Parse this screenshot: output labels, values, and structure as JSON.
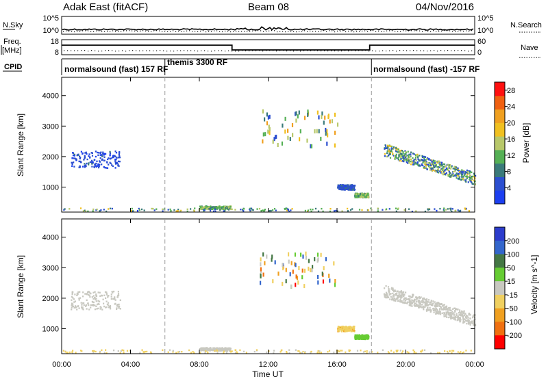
{
  "header": {
    "title": "Adak East (fitACF)",
    "beam": "Beam 08",
    "date": "04/Nov/2016"
  },
  "panels": {
    "nsky": {
      "label": "N.Sky",
      "ticks": [
        "10^5",
        "10^0"
      ],
      "right_label": "N.Search",
      "right_ticks": [
        "10^5",
        "10^0"
      ]
    },
    "freq": {
      "label_line1": "Freq.",
      "label_line2": "[MHz]",
      "ticks": [
        "18",
        "8"
      ],
      "right_label": "Nave",
      "right_ticks": [
        "60",
        "0"
      ]
    },
    "cpid": {
      "label": "CPID",
      "segments": [
        {
          "text": "normalsound (fast) 157 RF",
          "start_hour": 0
        },
        {
          "text": "themis 3300 RF",
          "start_hour": 6
        },
        {
          "text": "normalsound (fast) -157 RF",
          "start_hour": 18
        }
      ]
    }
  },
  "colors": {
    "power": [
      "#1c3ff0",
      "#2c4fd0",
      "#3a7a7a",
      "#55b055",
      "#b8c86a",
      "#f0c020",
      "#f0a020",
      "#f06010",
      "#ff1010"
    ],
    "velocity": [
      "#2c3ccc",
      "#3366cc",
      "#447744",
      "#66cc33",
      "#c8c8c0",
      "#f0d060",
      "#f0a020",
      "#f07010",
      "#ff0000"
    ]
  },
  "chart_data": [
    {
      "type": "heatmap",
      "panel": "power",
      "ylabel": "Slant Range [km]",
      "yticks": [
        1000,
        2000,
        3000,
        4000
      ],
      "ylim": [
        180,
        4600
      ],
      "xlim_hours": [
        0,
        24
      ],
      "colorbar": {
        "label": "Power [dB]",
        "ticks": [
          "4",
          "8",
          "12",
          "16",
          "20",
          "24",
          "28"
        ],
        "range": [
          0,
          30
        ]
      },
      "clusters": [
        {
          "t0": 0.5,
          "t1": 3.4,
          "r0": 1650,
          "r1": 2200,
          "v0": 2,
          "v1": 7
        },
        {
          "t0": 8.0,
          "t1": 9.8,
          "r0": 300,
          "r1": 400,
          "v0": 8,
          "v1": 16
        },
        {
          "t0": 16.0,
          "t1": 17.0,
          "r0": 930,
          "r1": 1100,
          "v0": 3,
          "v1": 8
        },
        {
          "t0": 17.0,
          "t1": 17.8,
          "r0": 680,
          "r1": 820,
          "v0": 8,
          "v1": 16
        },
        {
          "t0": 18.7,
          "t1": 24.0,
          "r0": 1250,
          "r1": 2450,
          "v0": 3,
          "v1": 18
        },
        {
          "t0": 11.5,
          "t1": 16.0,
          "r0": 2400,
          "r1": 3550,
          "v0": 4,
          "v1": 22
        },
        {
          "t0": 0.0,
          "t1": 24.0,
          "r0": 200,
          "r1": 330,
          "v0": 3,
          "v1": 18
        }
      ]
    },
    {
      "type": "heatmap",
      "panel": "velocity",
      "ylabel": "Slant Range [km]",
      "xlabel": "Time UT",
      "yticks": [
        1000,
        2000,
        3000,
        4000
      ],
      "ylim": [
        180,
        4600
      ],
      "xticks": [
        "00:00",
        "04:00",
        "08:00",
        "12:00",
        "16:00",
        "20:00",
        "00:00"
      ],
      "xlim_hours": [
        0,
        24
      ],
      "colorbar": {
        "label": "Velocity [m s^-1]",
        "ticks": [
          "200",
          "100",
          "50",
          "15",
          "-15",
          "-50",
          "-100",
          "-200"
        ],
        "range": [
          -250,
          250
        ]
      },
      "clusters": [
        {
          "t0": 0.5,
          "t1": 3.4,
          "r0": 1650,
          "r1": 2250,
          "v0": -20,
          "v1": 15
        },
        {
          "t0": 8.0,
          "t1": 9.8,
          "r0": 300,
          "r1": 400,
          "v0": -10,
          "v1": 10
        },
        {
          "t0": 16.0,
          "t1": 17.0,
          "r0": 930,
          "r1": 1100,
          "v0": -90,
          "v1": -40
        },
        {
          "t0": 17.0,
          "t1": 17.8,
          "r0": 680,
          "r1": 820,
          "v0": 30,
          "v1": 70
        },
        {
          "t0": 18.7,
          "t1": 24.0,
          "r0": 1250,
          "r1": 2450,
          "v0": -12,
          "v1": 12
        },
        {
          "t0": 11.5,
          "t1": 16.0,
          "r0": 2400,
          "r1": 3550,
          "v0": -200,
          "v1": 200
        },
        {
          "t0": 0.0,
          "t1": 24.0,
          "r0": 200,
          "r1": 330,
          "v0": -60,
          "v1": -15
        }
      ]
    }
  ]
}
